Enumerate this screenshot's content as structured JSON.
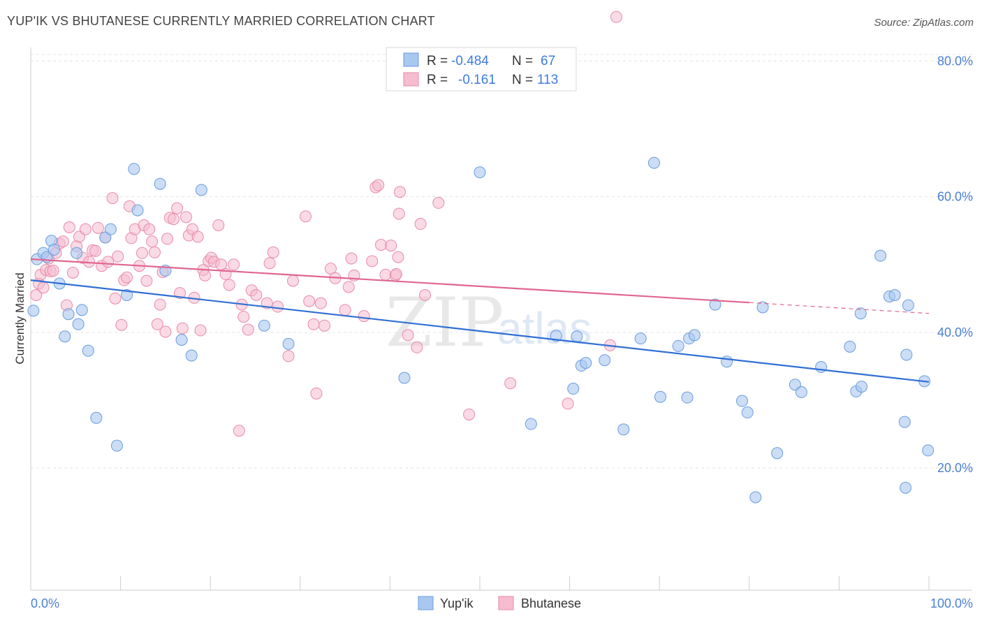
{
  "title": "YUP'IK VS BHUTANESE CURRENTLY MARRIED CORRELATION CHART",
  "source": "Source: ZipAtlas.com",
  "colors": {
    "blue_fill": "#a9c8f0",
    "blue_stroke": "#6a9be0",
    "blue_line": "#2f6fd6",
    "pink_fill": "#f6bcd0",
    "pink_stroke": "#e88aa8",
    "pink_line": "#e0668f",
    "grid": "#e3e3e3",
    "tick_label": "#4a7fd4"
  },
  "legend": {
    "row1": {
      "r_label": "R =",
      "r_value": "-0.484",
      "n_label": "N =",
      "n_value": "67"
    },
    "row2": {
      "r_label": "R =",
      "r_value": "-0.161",
      "n_label": "N =",
      "n_value": "113"
    }
  },
  "bottom_legend": {
    "series1": "Yup'ik",
    "series2": "Bhutanese"
  },
  "watermark": {
    "zip": "ZIP",
    "atlas": "atlas"
  },
  "chart_data": {
    "type": "scatter",
    "title": "YUP'IK VS BHUTANESE CURRENTLY MARRIED CORRELATION CHART",
    "xlabel": "",
    "ylabel": "Currently Married",
    "xlim": [
      0,
      100
    ],
    "ylim": [
      2,
      82
    ],
    "x_tick_labels": [
      {
        "value": 0,
        "label": "0.0%"
      },
      {
        "value": 100,
        "label": "100.0%"
      }
    ],
    "y_tick_labels": [
      {
        "value": 20,
        "label": "20.0%"
      },
      {
        "value": 40,
        "label": "40.0%"
      },
      {
        "value": 60,
        "label": "60.0%"
      },
      {
        "value": 80,
        "label": "80.0%"
      }
    ],
    "grid": true,
    "legend_position": "top-center",
    "series": [
      {
        "name": "Yup'ik",
        "color": "#a9c8f0",
        "regression": {
          "x": [
            0,
            100
          ],
          "y": [
            47.7,
            32.7
          ],
          "style": "solid"
        },
        "points": [
          [
            0.3,
            43.2
          ],
          [
            0.7,
            50.8
          ],
          [
            1.4,
            51.7
          ],
          [
            1.8,
            51.1
          ],
          [
            2.3,
            53.5
          ],
          [
            2.6,
            52.2
          ],
          [
            3.2,
            47.2
          ],
          [
            3.8,
            39.4
          ],
          [
            4.2,
            42.7
          ],
          [
            5.3,
            41.2
          ],
          [
            5.1,
            51.7
          ],
          [
            5.7,
            43.3
          ],
          [
            6.4,
            37.3
          ],
          [
            7.3,
            27.4
          ],
          [
            8.3,
            54.0
          ],
          [
            8.9,
            55.2
          ],
          [
            9.6,
            23.3
          ],
          [
            10.7,
            45.5
          ],
          [
            11.5,
            64.1
          ],
          [
            11.9,
            58.0
          ],
          [
            14.4,
            61.9
          ],
          [
            15.0,
            49.1
          ],
          [
            16.8,
            38.9
          ],
          [
            17.9,
            36.6
          ],
          [
            19.0,
            61.0
          ],
          [
            26.0,
            41.0
          ],
          [
            28.7,
            38.3
          ],
          [
            41.6,
            33.3
          ],
          [
            50.0,
            63.6
          ],
          [
            55.7,
            26.5
          ],
          [
            58.5,
            39.5
          ],
          [
            60.4,
            31.7
          ],
          [
            60.8,
            39.4
          ],
          [
            61.3,
            35.1
          ],
          [
            61.8,
            35.5
          ],
          [
            63.9,
            35.9
          ],
          [
            66.0,
            25.7
          ],
          [
            67.9,
            39.1
          ],
          [
            69.4,
            65.0
          ],
          [
            70.1,
            30.5
          ],
          [
            72.1,
            38.0
          ],
          [
            73.1,
            30.4
          ],
          [
            73.3,
            39.1
          ],
          [
            73.9,
            39.6
          ],
          [
            76.2,
            44.1
          ],
          [
            77.5,
            35.7
          ],
          [
            79.2,
            29.9
          ],
          [
            79.8,
            28.2
          ],
          [
            80.7,
            15.7
          ],
          [
            81.5,
            43.7
          ],
          [
            83.1,
            22.2
          ],
          [
            85.1,
            32.3
          ],
          [
            85.8,
            31.2
          ],
          [
            88.0,
            34.9
          ],
          [
            91.2,
            37.9
          ],
          [
            91.9,
            31.3
          ],
          [
            92.4,
            42.8
          ],
          [
            92.5,
            32.0
          ],
          [
            94.6,
            51.3
          ],
          [
            95.6,
            45.3
          ],
          [
            96.2,
            45.5
          ],
          [
            97.3,
            26.8
          ],
          [
            97.4,
            17.1
          ],
          [
            97.5,
            36.7
          ],
          [
            97.7,
            44.0
          ],
          [
            99.5,
            32.8
          ],
          [
            99.9,
            22.6
          ]
        ]
      },
      {
        "name": "Bhutanese",
        "color": "#f6bcd0",
        "regression": {
          "x": [
            0,
            80
          ],
          "y": [
            50.8,
            44.4
          ],
          "style": "solid",
          "dashed_extension_to": [
            100,
            42.8
          ]
        },
        "points": [
          [
            0.6,
            45.5
          ],
          [
            0.9,
            47.2
          ],
          [
            1.1,
            48.5
          ],
          [
            1.4,
            46.6
          ],
          [
            1.7,
            49.2
          ],
          [
            2.0,
            50.9
          ],
          [
            2.2,
            49.0
          ],
          [
            2.5,
            49.1
          ],
          [
            2.8,
            51.7
          ],
          [
            3.2,
            53.1
          ],
          [
            3.6,
            53.4
          ],
          [
            4.0,
            44.0
          ],
          [
            4.3,
            55.5
          ],
          [
            4.7,
            48.8
          ],
          [
            5.1,
            52.7
          ],
          [
            5.4,
            54.1
          ],
          [
            5.8,
            51.0
          ],
          [
            6.1,
            55.2
          ],
          [
            6.5,
            50.4
          ],
          [
            6.9,
            52.1
          ],
          [
            7.2,
            52.0
          ],
          [
            7.5,
            55.4
          ],
          [
            7.9,
            49.8
          ],
          [
            8.3,
            54.0
          ],
          [
            8.6,
            50.4
          ],
          [
            9.1,
            59.8
          ],
          [
            9.4,
            45.0
          ],
          [
            9.7,
            51.2
          ],
          [
            10.1,
            41.1
          ],
          [
            10.4,
            47.7
          ],
          [
            10.7,
            48.1
          ],
          [
            11.0,
            58.6
          ],
          [
            11.2,
            53.9
          ],
          [
            11.6,
            55.2
          ],
          [
            12.1,
            49.8
          ],
          [
            12.4,
            51.7
          ],
          [
            12.6,
            55.8
          ],
          [
            12.9,
            47.6
          ],
          [
            13.2,
            55.2
          ],
          [
            13.5,
            53.4
          ],
          [
            13.8,
            51.8
          ],
          [
            14.1,
            41.2
          ],
          [
            14.4,
            44.1
          ],
          [
            14.7,
            48.9
          ],
          [
            15.0,
            40.1
          ],
          [
            15.2,
            53.8
          ],
          [
            15.5,
            56.9
          ],
          [
            15.9,
            56.7
          ],
          [
            16.3,
            58.3
          ],
          [
            16.6,
            45.8
          ],
          [
            16.9,
            40.6
          ],
          [
            17.3,
            57.0
          ],
          [
            17.6,
            54.3
          ],
          [
            18.0,
            55.2
          ],
          [
            18.2,
            45.1
          ],
          [
            18.6,
            54.1
          ],
          [
            18.9,
            40.3
          ],
          [
            19.2,
            49.2
          ],
          [
            19.4,
            48.4
          ],
          [
            19.8,
            50.5
          ],
          [
            20.1,
            51.0
          ],
          [
            20.4,
            50.4
          ],
          [
            20.9,
            55.8
          ],
          [
            21.2,
            50.0
          ],
          [
            21.7,
            48.6
          ],
          [
            22.1,
            47.0
          ],
          [
            22.6,
            50.0
          ],
          [
            23.2,
            25.5
          ],
          [
            23.5,
            44.1
          ],
          [
            23.7,
            42.3
          ],
          [
            24.2,
            40.4
          ],
          [
            24.6,
            46.2
          ],
          [
            25.1,
            45.5
          ],
          [
            26.3,
            44.3
          ],
          [
            26.6,
            50.2
          ],
          [
            27.0,
            51.8
          ],
          [
            27.5,
            43.8
          ],
          [
            28.7,
            36.5
          ],
          [
            29.2,
            47.6
          ],
          [
            30.6,
            57.1
          ],
          [
            31.0,
            44.6
          ],
          [
            31.5,
            41.2
          ],
          [
            31.8,
            31.0
          ],
          [
            32.3,
            44.3
          ],
          [
            32.7,
            41.0
          ],
          [
            33.4,
            49.4
          ],
          [
            33.9,
            48.0
          ],
          [
            35.0,
            43.3
          ],
          [
            35.4,
            46.7
          ],
          [
            35.7,
            50.9
          ],
          [
            36.0,
            48.4
          ],
          [
            37.1,
            42.4
          ],
          [
            38.0,
            50.5
          ],
          [
            38.4,
            61.4
          ],
          [
            38.7,
            61.7
          ],
          [
            39.0,
            52.9
          ],
          [
            39.5,
            48.5
          ],
          [
            40.1,
            52.8
          ],
          [
            40.6,
            48.4
          ],
          [
            40.7,
            48.6
          ],
          [
            40.9,
            51.1
          ],
          [
            41.0,
            57.5
          ],
          [
            41.1,
            60.7
          ],
          [
            42.0,
            39.6
          ],
          [
            43.0,
            37.8
          ],
          [
            43.4,
            56.0
          ],
          [
            43.9,
            45.5
          ],
          [
            45.4,
            59.1
          ],
          [
            48.8,
            27.9
          ],
          [
            53.4,
            32.5
          ],
          [
            59.8,
            29.5
          ],
          [
            64.5,
            38.1
          ],
          [
            65.2,
            86.5
          ]
        ]
      }
    ]
  }
}
